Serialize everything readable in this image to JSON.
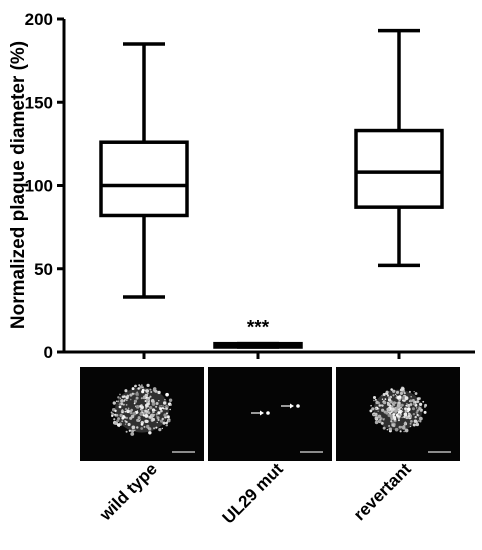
{
  "chart_data": {
    "type": "box",
    "ylabel": "Normalized  plaque diameter (%)",
    "ylim": [
      0,
      200
    ],
    "yticks": [
      0,
      50,
      100,
      150,
      200
    ],
    "categories": [
      "wild type",
      "UL29 mut",
      "revertant"
    ],
    "boxes": [
      {
        "category": "wild type",
        "min": 33,
        "q1": 82,
        "median": 100,
        "q3": 126,
        "max": 185
      },
      {
        "category": "UL29 mut",
        "min": 3,
        "q1": 3,
        "median": 4,
        "q3": 5,
        "max": 5
      },
      {
        "category": "revertant",
        "min": 52,
        "q1": 87,
        "median": 108,
        "q3": 133,
        "max": 193
      }
    ],
    "annotations": [
      {
        "category": "UL29 mut",
        "text": "***"
      }
    ],
    "grid": false,
    "legend": "none"
  },
  "micrographs": [
    {
      "category": "wild type",
      "content": "large fluorescent plaque"
    },
    {
      "category": "UL29 mut",
      "content": "single infected cells marked by arrows"
    },
    {
      "category": "revertant",
      "content": "large fluorescent plaque"
    }
  ],
  "colors": {
    "stroke": "#000000",
    "background": "#ffffff",
    "micrograph_bg": "#050505",
    "fluorescence": "#f2f2f2"
  }
}
